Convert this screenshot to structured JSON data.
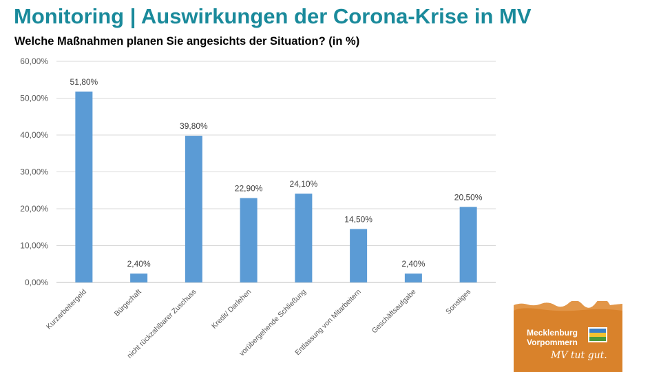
{
  "header": {
    "title": "Monitoring | Auswirkungen der Corona-Krise in MV",
    "subtitle": "Welche Maßnahmen planen Sie angesichts der Situation? (in %)"
  },
  "chart_data": {
    "type": "bar",
    "categories": [
      "Kurzarbeitergeld",
      "Bürgschaft",
      "nicht rückzahlbarer Zuschuss",
      "Kredit/ Darlehen",
      "vorübergehende Schließung",
      "Entlassung von Mitarbeitern",
      "Geschäftsaufgabe",
      "Sonstiges"
    ],
    "values": [
      51.8,
      2.4,
      39.8,
      22.9,
      24.1,
      14.5,
      2.4,
      20.5
    ],
    "data_labels": [
      "51,80%",
      "2,40%",
      "39,80%",
      "22,90%",
      "24,10%",
      "14,50%",
      "2,40%",
      "20,50%"
    ],
    "yticks": [
      0,
      10,
      20,
      30,
      40,
      50,
      60
    ],
    "ytick_labels": [
      "0,00%",
      "10,00%",
      "20,00%",
      "30,00%",
      "40,00%",
      "50,00%",
      "60,00%"
    ],
    "ylim": [
      0,
      60
    ],
    "grid": true,
    "bar_color": "#5b9bd5",
    "xlabel": "",
    "ylabel": ""
  },
  "logo": {
    "line1": "Mecklenburg",
    "line2": "Vorpommern",
    "slogan": "MV tut gut.",
    "color": "#d9822b"
  }
}
